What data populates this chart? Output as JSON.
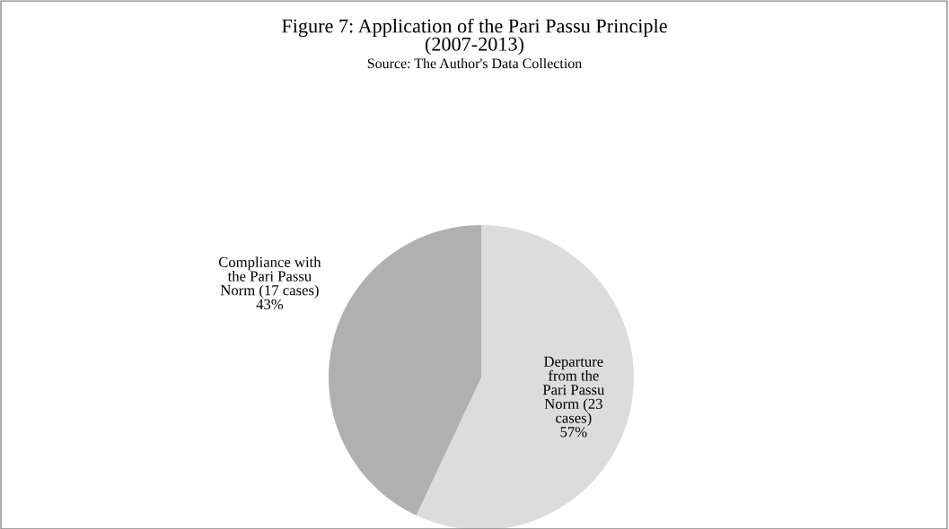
{
  "chart_data": {
    "type": "pie",
    "title": "Figure 7: Application of the Pari Passu Principle\n(2007-2013)",
    "subtitle": "Source: The Author's Data Collection",
    "categories": [
      "Departure from the Pari Passu Norm (23 cases)",
      "Compliance with the Pari Passu Norm (17 cases)"
    ],
    "values": [
      57,
      43
    ],
    "colors": [
      "#dcdcdc",
      "#b0b0b0"
    ],
    "value_labels": [
      "57%",
      "43%"
    ],
    "legend": false
  }
}
